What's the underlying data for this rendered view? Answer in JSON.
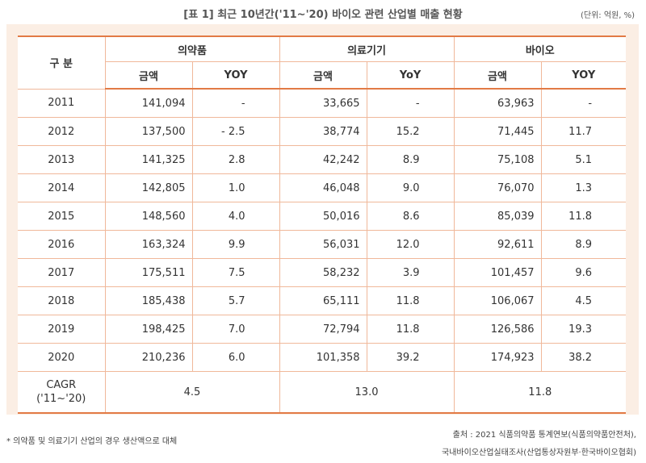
{
  "title": "[표 1] 최근 10년간('11~'20) 바이오 관련 산업별 매출 현황",
  "unit": "(단위: 억원, %)",
  "table": {
    "row_header": "구 분",
    "groups": [
      "의약품",
      "의료기기",
      "바이오"
    ],
    "sub_headers": [
      "금액",
      "YOY",
      "금액",
      "YoY",
      "금액",
      "YOY"
    ],
    "rows": [
      {
        "year": "2011",
        "cells": [
          "141,094",
          "-",
          "33,665",
          "-",
          "63,963",
          "-"
        ]
      },
      {
        "year": "2012",
        "cells": [
          "137,500",
          "- 2.5",
          "38,774",
          "15.2",
          "71,445",
          "11.7"
        ]
      },
      {
        "year": "2013",
        "cells": [
          "141,325",
          "2.8",
          "42,242",
          "8.9",
          "75,108",
          "5.1"
        ]
      },
      {
        "year": "2014",
        "cells": [
          "142,805",
          "1.0",
          "46,048",
          "9.0",
          "76,070",
          "1.3"
        ]
      },
      {
        "year": "2015",
        "cells": [
          "148,560",
          "4.0",
          "50,016",
          "8.6",
          "85,039",
          "11.8"
        ]
      },
      {
        "year": "2016",
        "cells": [
          "163,324",
          "9.9",
          "56,031",
          "12.0",
          "92,611",
          "8.9"
        ]
      },
      {
        "year": "2017",
        "cells": [
          "175,511",
          "7.5",
          "58,232",
          "3.9",
          "101,457",
          "9.6"
        ]
      },
      {
        "year": "2018",
        "cells": [
          "185,438",
          "5.7",
          "65,111",
          "11.8",
          "106,067",
          "4.5"
        ]
      },
      {
        "year": "2019",
        "cells": [
          "198,425",
          "7.0",
          "72,794",
          "11.8",
          "126,586",
          "19.3"
        ]
      },
      {
        "year": "2020",
        "cells": [
          "210,236",
          "6.0",
          "101,358",
          "39.2",
          "174,923",
          "38.2"
        ]
      }
    ],
    "cagr": {
      "label_line1": "CAGR",
      "label_line2": "('11~'20)",
      "values": [
        "4.5",
        "13.0",
        "11.8"
      ]
    }
  },
  "footnote": "* 의약품 및 의료기기 산업의 경우 생산액으로 대체",
  "source_line1": "출처 : 2021 식품의약품 통계연보(식품의약품안전처),",
  "source_line2": "국내바이오산업실태조사(산업통상자원부·한국바이오협회)"
}
